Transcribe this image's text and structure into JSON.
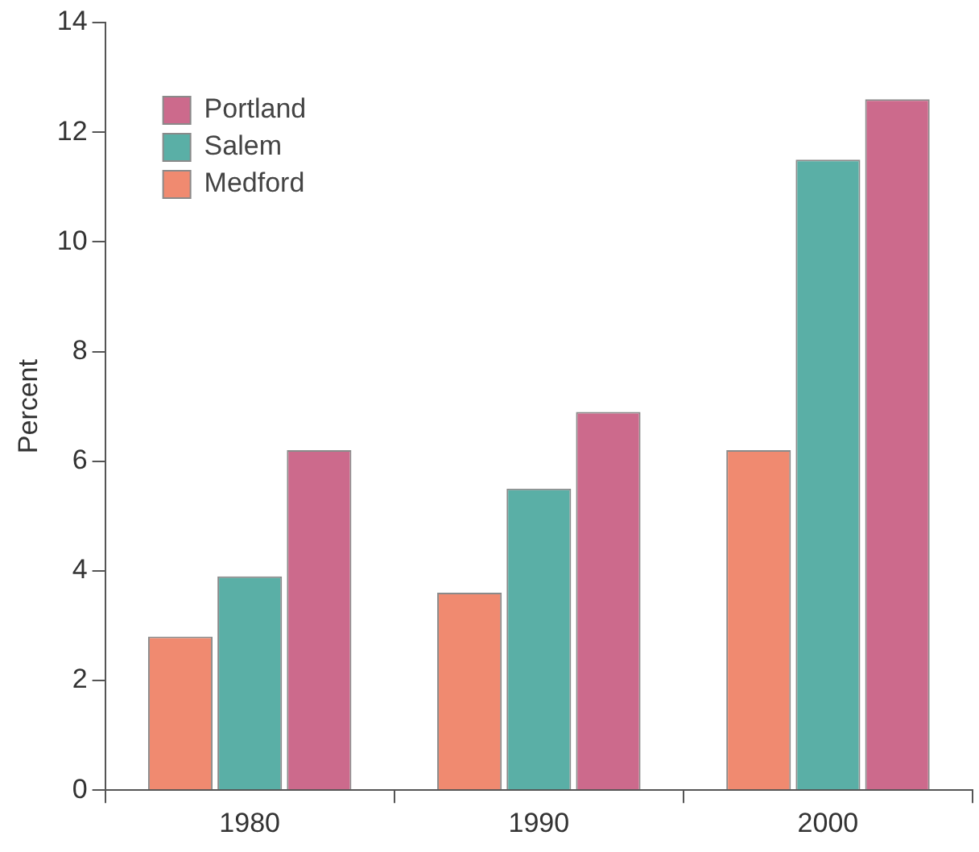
{
  "chart_data": {
    "type": "bar",
    "ylabel": "Percent",
    "categories": [
      "1980",
      "1990",
      "2000"
    ],
    "series": [
      {
        "name": "Medford",
        "color": "#f08a70",
        "values": [
          2.8,
          3.6,
          6.2
        ]
      },
      {
        "name": "Salem",
        "color": "#5aafa6",
        "values": [
          3.9,
          5.5,
          11.5
        ]
      },
      {
        "name": "Portland",
        "color": "#cc6a8c",
        "values": [
          6.2,
          6.9,
          12.6
        ]
      }
    ],
    "ylim": [
      0,
      14
    ],
    "yticks": [
      0,
      2,
      4,
      6,
      8,
      10,
      12,
      14
    ],
    "grid": false,
    "legend": "top left"
  }
}
